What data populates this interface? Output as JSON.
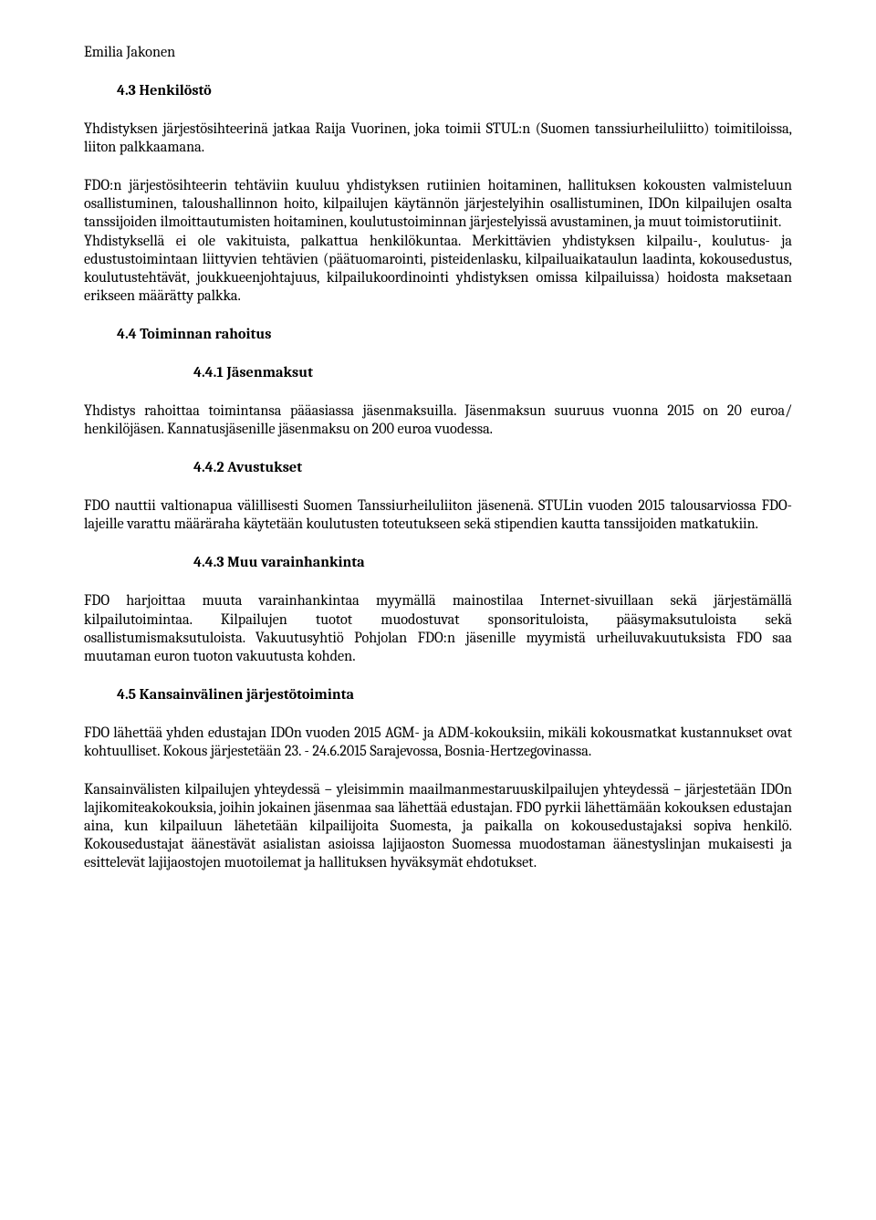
{
  "top_name": "Emilia Jakonen",
  "sec_4_3": {
    "heading": "4.3 Henkilöstö",
    "p1": "Yhdistyksen järjestösihteerinä jatkaa Raija Vuorinen, joka toimii STUL:n (Suomen tanssiurheiluliitto) toimitiloissa, liiton palkkaamana.",
    "p2": "FDO:n järjestösihteerin tehtäviin kuuluu yhdistyksen rutiinien hoitaminen, hallituksen kokousten valmisteluun osallistuminen, taloushallinnon hoito, kilpailujen käytännön järjestelyihin osallistuminen, IDOn kilpailujen osalta tanssijoiden ilmoittautumisten hoitaminen, koulutustoiminnan järjestelyissä avustaminen, ja muut toimistorutiinit.",
    "p3": "Yhdistyksellä ei ole vakituista, palkattua henkilökuntaa. Merkittävien yhdistyksen kilpailu-, koulutus- ja edustustoimintaan liittyvien tehtävien (päätuomarointi, pisteidenlasku, kilpailuaikataulun laadinta, kokousedustus, koulutustehtävät, joukkueenjohtajuus, kilpailukoordinointi yhdistyksen omissa kilpailuissa) hoidosta maksetaan erikseen määrätty palkka."
  },
  "sec_4_4": {
    "heading": "4.4 Toiminnan rahoitus",
    "sub1": {
      "heading": "4.4.1 Jäsenmaksut",
      "p": "Yhdistys rahoittaa toimintansa pääasiassa jäsenmaksuilla. Jäsenmaksun suuruus vuonna 2015 on 20 euroa/ henkilöjäsen. Kannatusjäsenille jäsenmaksu on 200 euroa vuodessa."
    },
    "sub2": {
      "heading": "4.4.2 Avustukset",
      "p": "FDO nauttii valtionapua välillisesti Suomen Tanssiurheiluliiton jäsenenä. STULin vuoden 2015 talousarviossa FDO-lajeille varattu määräraha käytetään koulutusten toteutukseen sekä stipendien kautta tanssijoiden matkatukiin."
    },
    "sub3": {
      "heading": "4.4.3 Muu varainhankinta",
      "p": "FDO harjoittaa muuta varainhankintaa myymällä mainostilaa Internet-sivuillaan sekä järjestämällä kilpailutoimintaa. Kilpailujen tuotot muodostuvat sponsorituloista, pääsymaksutuloista sekä osallistumismaksutuloista. Vakuutusyhtiö Pohjolan FDO:n jäsenille myymistä urheiluvakuutuksista FDO saa muutaman euron tuoton vakuutusta kohden."
    }
  },
  "sec_4_5": {
    "heading": "4.5 Kansainvälinen järjestötoiminta",
    "p1": "FDO lähettää yhden edustajan IDOn vuoden 2015 AGM- ja ADM-kokouksiin, mikäli kokousmatkat kustannukset ovat kohtuulliset. Kokous järjestetään 23. - 24.6.2015 Sarajevossa, Bosnia-Hertzegovinassa.",
    "p2": "Kansainvälisten kilpailujen yhteydessä – yleisimmin maailmanmestaruuskilpailujen yhteydessä – järjestetään IDOn lajikomiteakokouksia, joihin jokainen jäsenmaa saa lähettää edustajan. FDO pyrkii lähettämään kokouksen edustajan aina, kun kilpailuun lähetetään kilpailijoita Suomesta, ja paikalla on kokousedustajaksi sopiva henkilö. Kokousedustajat äänestävät asialistan asioissa lajijaoston Suomessa muodostaman äänestyslinjan mukaisesti ja esittelevät lajijaostojen muotoilemat ja hallituksen hyväksymät ehdotukset."
  }
}
